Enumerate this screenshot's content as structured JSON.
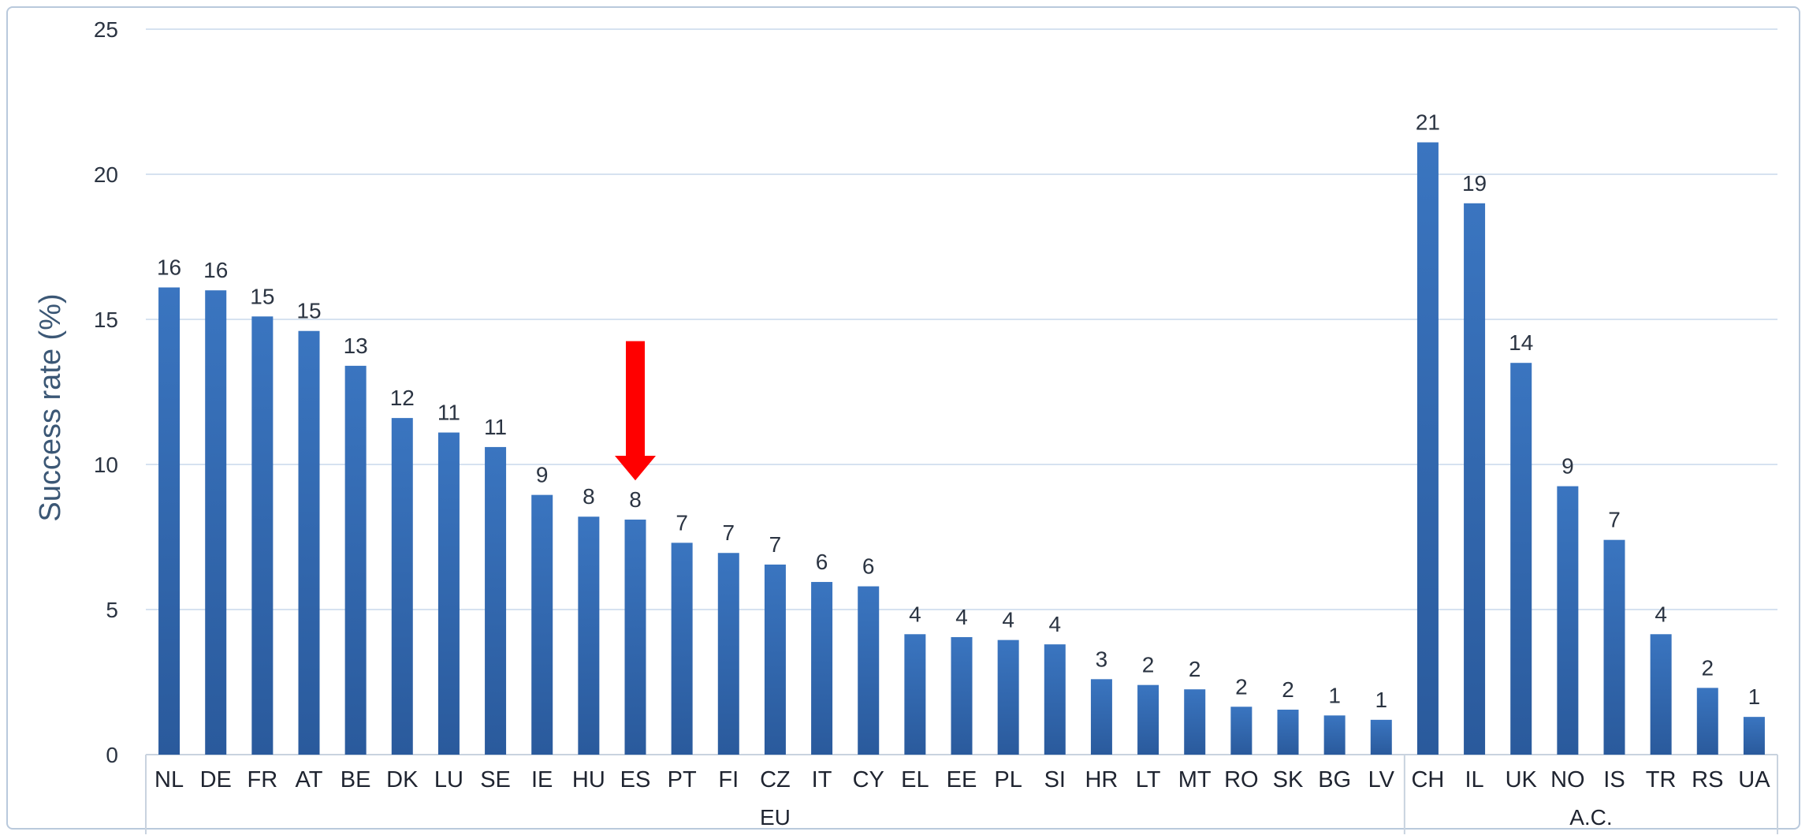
{
  "chart_data": {
    "type": "bar",
    "ylabel": "Success rate (%)",
    "ylim": [
      0,
      25
    ],
    "yticks": [
      0,
      5,
      10,
      15,
      20,
      25
    ],
    "grid": true,
    "bar_color": "#3a75c0",
    "bar_color_dark": "#2a5a9c",
    "highlight_color": "#ff0000",
    "highlight_category": "ES",
    "categories": [
      "NL",
      "DE",
      "FR",
      "AT",
      "BE",
      "DK",
      "LU",
      "SE",
      "IE",
      "HU",
      "ES",
      "PT",
      "FI",
      "CZ",
      "IT",
      "CY",
      "EL",
      "EE",
      "PL",
      "SI",
      "HR",
      "LT",
      "MT",
      "RO",
      "SK",
      "BG",
      "LV",
      "CH",
      "IL",
      "UK",
      "NO",
      "IS",
      "TR",
      "RS",
      "UA"
    ],
    "values": [
      16.1,
      16.0,
      15.1,
      14.6,
      13.4,
      11.6,
      11.1,
      10.6,
      8.95,
      8.2,
      8.1,
      7.3,
      6.95,
      6.55,
      5.95,
      5.8,
      4.15,
      4.05,
      3.95,
      3.8,
      2.6,
      2.4,
      2.25,
      1.65,
      1.55,
      1.35,
      1.2,
      21.1,
      19.0,
      13.5,
      9.25,
      7.4,
      4.15,
      2.3,
      1.3
    ],
    "data_labels": [
      "16",
      "16",
      "15",
      "15",
      "13",
      "12",
      "11",
      "11",
      "9",
      "8",
      "8",
      "7",
      "7",
      "7",
      "6",
      "6",
      "4",
      "4",
      "4",
      "4",
      "3",
      "2",
      "2",
      "2",
      "2",
      "1",
      "1",
      "21",
      "19",
      "14",
      "9",
      "7",
      "4",
      "2",
      "1"
    ],
    "groups": [
      {
        "label": "EU",
        "start": 0,
        "end": 26
      },
      {
        "label": "A.C.",
        "start": 27,
        "end": 34
      }
    ]
  }
}
